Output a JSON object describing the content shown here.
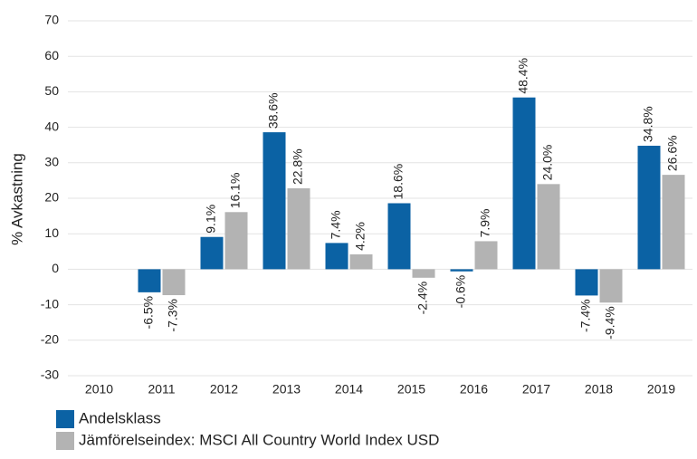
{
  "chart_data": {
    "type": "bar",
    "y_label": "% Avkastning",
    "categories": [
      "2010",
      "2011",
      "2012",
      "2013",
      "2014",
      "2015",
      "2016",
      "2017",
      "2018",
      "2019"
    ],
    "series": [
      {
        "name": "Andelsklass",
        "color": "#0b62a4",
        "values": [
          null,
          -6.5,
          9.1,
          38.6,
          7.4,
          18.6,
          -0.6,
          48.4,
          -7.4,
          34.8
        ],
        "value_labels": [
          null,
          "-6.5%",
          "9.1%",
          "38.6%",
          "7.4%",
          "18.6%",
          "-0.6%",
          "48.4%",
          "-7.4%",
          "34.8%"
        ]
      },
      {
        "name": "Jämförelseindex: MSCI All Country World Index USD",
        "color": "#b3b3b3",
        "values": [
          null,
          -7.3,
          16.1,
          22.8,
          4.2,
          -2.4,
          7.9,
          24.0,
          -9.4,
          26.6
        ],
        "value_labels": [
          null,
          "-7.3%",
          "16.1%",
          "22.8%",
          "4.2%",
          "-2.4%",
          "7.9%",
          "24.0%",
          "-9.4%",
          "26.6%"
        ]
      }
    ],
    "ylim": [
      -30,
      70
    ],
    "yticks": [
      -30,
      -20,
      -10,
      0,
      10,
      20,
      30,
      40,
      50,
      60,
      70
    ],
    "grid": true,
    "legend": "bottom"
  }
}
